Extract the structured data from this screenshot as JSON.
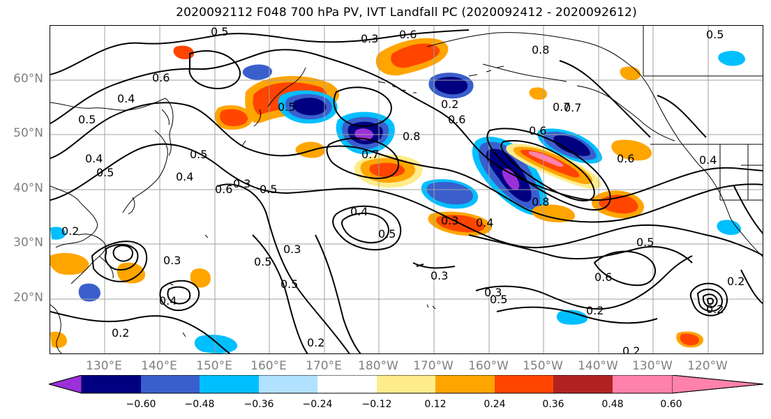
{
  "title": "2020092112 F048 700 hPa PV, IVT Landfall PC (2020092412 - 2020092612)",
  "lat_labels": [
    "60°N",
    "50°N",
    "40°N",
    "30°N",
    "20°N"
  ],
  "lon_labels": [
    "130°E",
    "140°E",
    "150°E",
    "160°E",
    "170°E",
    "180°W",
    "170°W",
    "160°W",
    "150°W",
    "140°W",
    "130°W",
    "120°W"
  ],
  "colorbar": {
    "ticks": [
      "−0.60",
      "−0.48",
      "−0.36",
      "−0.24",
      "−0.12",
      "0.12",
      "0.24",
      "0.36",
      "0.48",
      "0.60"
    ],
    "colors": [
      "#9b30d9",
      "#000080",
      "#3a5fcd",
      "#00bfff",
      "#b0e2ff",
      "#ffffff",
      "#ffec8b",
      "#ffa500",
      "#ff4500",
      "#b22222",
      "#ff82ab"
    ]
  },
  "contour_labels": [
    "0.5",
    "0.3",
    "0.6",
    "0.8",
    "0.5",
    "0.7",
    "0.4",
    "0.5",
    "0.4",
    "0.5",
    "0.5",
    "0.6",
    "0.4",
    "0.5",
    "0.7",
    "0.6",
    "0.8",
    "0.6",
    "0.7",
    "0.6",
    "0.5",
    "0.8",
    "0.4",
    "0.6",
    "0.5",
    "0.4",
    "0.3",
    "0.5",
    "0.3",
    "0.5",
    "0.6",
    "0.5",
    "0.3",
    "0.3",
    "0.4",
    "0.2",
    "0.2",
    "0.3",
    "0.5",
    "0.2",
    "0.2",
    "0.2",
    "0.2",
    "0.2",
    "0.3",
    "0.4",
    "0.2"
  ]
}
